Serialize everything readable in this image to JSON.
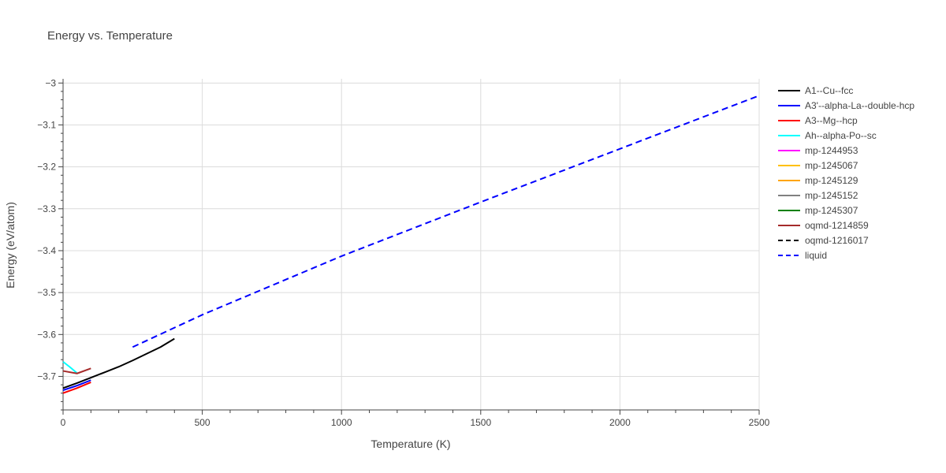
{
  "chart_data": {
    "type": "line",
    "title": "Energy vs. Temperature",
    "xlabel": "Temperature (K)",
    "ylabel": "Energy (eV/atom)",
    "xlim": [
      0,
      2500
    ],
    "ylim": [
      -3.78,
      -2.99
    ],
    "x_ticks": [
      0,
      500,
      1000,
      1500,
      2000,
      2500
    ],
    "x_tick_labels": [
      "0",
      "500",
      "1000",
      "1500",
      "2000",
      "2500"
    ],
    "y_ticks": [
      -3.0,
      -3.1,
      -3.2,
      -3.3,
      -3.4,
      -3.5,
      -3.6,
      -3.7
    ],
    "y_tick_labels": [
      "−3",
      "−3.1",
      "−3.2",
      "−3.3",
      "−3.4",
      "−3.5",
      "−3.6",
      "−3.7"
    ],
    "grid": true,
    "legend_position": "right",
    "series": [
      {
        "name": "A1--Cu--fcc",
        "color": "#000000",
        "dash": "solid",
        "x": [
          0,
          50,
          100,
          150,
          200,
          250,
          300,
          350,
          400
        ],
        "y": [
          -3.728,
          -3.716,
          -3.703,
          -3.69,
          -3.677,
          -3.662,
          -3.646,
          -3.63,
          -3.61
        ]
      },
      {
        "name": "A3'--alpha-La--double-hcp",
        "color": "#0000ff",
        "dash": "solid",
        "x": [
          0,
          50,
          100
        ],
        "y": [
          -3.733,
          -3.722,
          -3.709
        ]
      },
      {
        "name": "A3--Mg--hcp",
        "color": "#ff0000",
        "dash": "solid",
        "x": [
          0,
          50,
          100
        ],
        "y": [
          -3.74,
          -3.728,
          -3.714
        ]
      },
      {
        "name": "Ah--alpha-Po--sc",
        "color": "#00ffff",
        "dash": "solid",
        "x": [
          0,
          25,
          50
        ],
        "y": [
          -3.665,
          -3.678,
          -3.692
        ]
      },
      {
        "name": "mp-1244953",
        "color": "#ff00ff",
        "dash": "solid",
        "x": [],
        "y": []
      },
      {
        "name": "mp-1245067",
        "color": "#ffc000",
        "dash": "solid",
        "x": [],
        "y": []
      },
      {
        "name": "mp-1245129",
        "color": "#ffa500",
        "dash": "solid",
        "x": [],
        "y": []
      },
      {
        "name": "mp-1245152",
        "color": "#808080",
        "dash": "solid",
        "x": [],
        "y": []
      },
      {
        "name": "mp-1245307",
        "color": "#008000",
        "dash": "solid",
        "x": [],
        "y": []
      },
      {
        "name": "oqmd-1214859",
        "color": "#a52a2a",
        "dash": "solid",
        "x": [
          0,
          50,
          100
        ],
        "y": [
          -3.687,
          -3.693,
          -3.681
        ]
      },
      {
        "name": "oqmd-1216017",
        "color": "#000000",
        "dash": "dash",
        "x": [],
        "y": []
      },
      {
        "name": "liquid",
        "color": "#0000ff",
        "dash": "dash",
        "x": [
          250,
          500,
          1000,
          1500,
          2000,
          2500
        ],
        "y": [
          -3.63,
          -3.553,
          -3.413,
          -3.284,
          -3.157,
          -3.03
        ]
      }
    ]
  }
}
